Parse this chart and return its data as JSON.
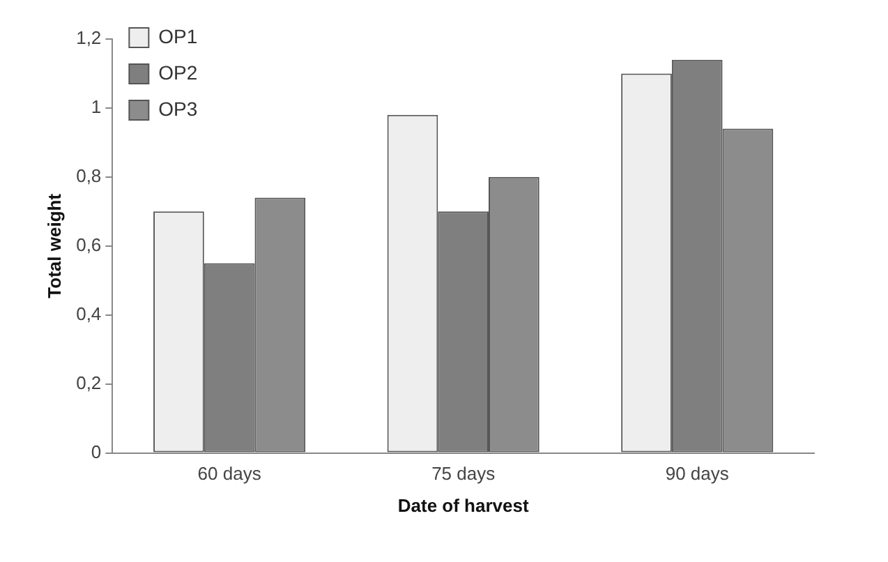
{
  "chart_data": {
    "type": "bar",
    "xlabel": "Date of harvest",
    "ylabel": "Total weight",
    "categories": [
      "60 days",
      "75 days",
      "90 days"
    ],
    "series": [
      {
        "name": "OP1",
        "color": "#eeeeee",
        "values": [
          0.7,
          0.98,
          1.1
        ]
      },
      {
        "name": "OP2",
        "color": "#7f7f7f",
        "values": [
          0.55,
          0.7,
          1.14
        ]
      },
      {
        "name": "OP3",
        "color": "#8c8c8c",
        "values": [
          0.74,
          0.8,
          0.94
        ]
      }
    ],
    "ylim": [
      0,
      1.2
    ],
    "yticks": [
      0,
      {
        "value": 0.2,
        "label": "0,2"
      },
      {
        "value": 0.4,
        "label": "0,4"
      },
      {
        "value": 0.6,
        "label": "0,6"
      },
      {
        "value": 0.8,
        "label": "0,8"
      },
      1,
      {
        "value": 1.2,
        "label": "1,2"
      }
    ],
    "grid": false,
    "legend": "top left"
  }
}
